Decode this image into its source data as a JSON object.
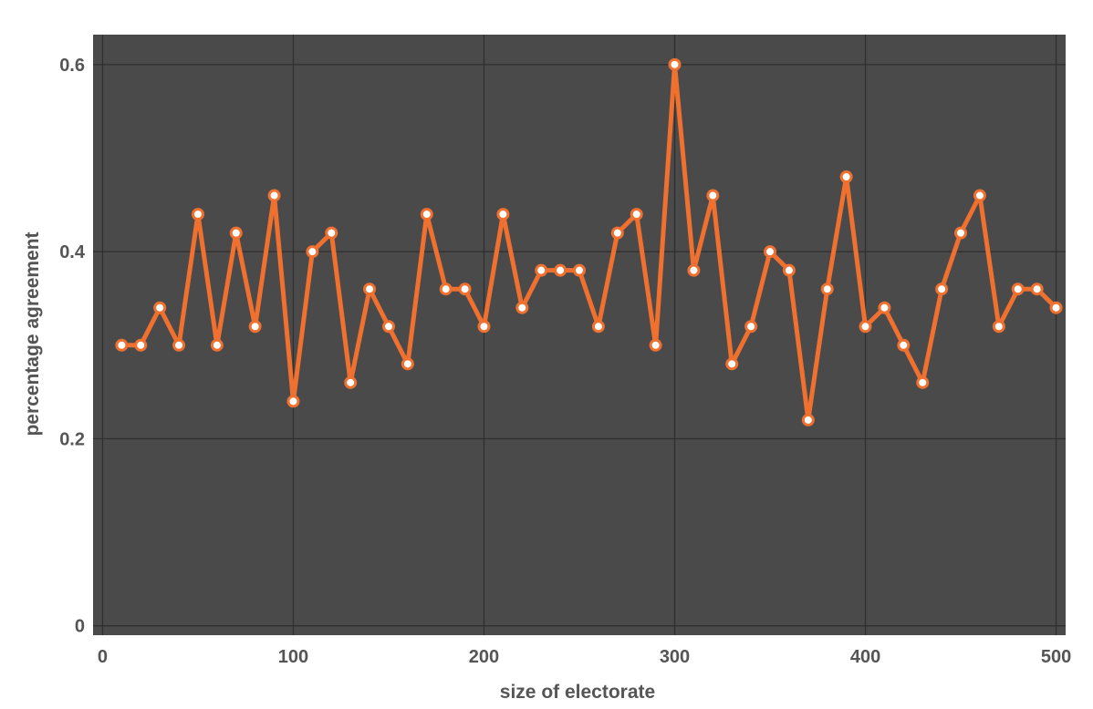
{
  "chart_data": {
    "type": "line",
    "xlabel": "size of electorate",
    "ylabel": "percentage agreement",
    "xlim": [
      -5,
      505
    ],
    "ylim": [
      -0.01,
      0.632
    ],
    "x_ticks": [
      0,
      100,
      200,
      300,
      400,
      500
    ],
    "y_ticks": [
      0,
      0.2,
      0.4,
      0.6
    ],
    "x_tick_labels": [
      "0",
      "100",
      "200",
      "300",
      "400",
      "500"
    ],
    "y_tick_labels": [
      "0",
      "0.2",
      "0.4",
      "0.6"
    ],
    "grid": true,
    "colors": {
      "plot_background": "#4a4a4a",
      "grid": "#2e2e2e",
      "line": "#f07030",
      "marker_fill": "#ffffff",
      "tick_text": "#555555"
    },
    "series": [
      {
        "x": [
          10,
          20,
          30,
          40,
          50,
          60,
          70,
          80,
          90,
          100,
          110,
          120,
          130,
          140,
          150,
          160,
          170,
          180,
          190,
          200,
          210,
          220,
          230,
          240,
          250,
          260,
          270,
          280,
          290,
          300,
          310,
          320,
          330,
          340,
          350,
          360,
          370,
          380,
          390,
          400,
          410,
          420,
          430,
          440,
          450,
          460,
          470,
          480,
          490,
          500
        ],
        "y": [
          0.3,
          0.3,
          0.34,
          0.3,
          0.44,
          0.3,
          0.42,
          0.32,
          0.46,
          0.24,
          0.4,
          0.42,
          0.26,
          0.36,
          0.32,
          0.28,
          0.44,
          0.36,
          0.36,
          0.32,
          0.44,
          0.34,
          0.38,
          0.38,
          0.38,
          0.32,
          0.42,
          0.44,
          0.3,
          0.6,
          0.38,
          0.46,
          0.28,
          0.32,
          0.4,
          0.38,
          0.22,
          0.36,
          0.48,
          0.32,
          0.34,
          0.3,
          0.26,
          0.36,
          0.42,
          0.46,
          0.32,
          0.36,
          0.36,
          0.34
        ]
      }
    ]
  }
}
